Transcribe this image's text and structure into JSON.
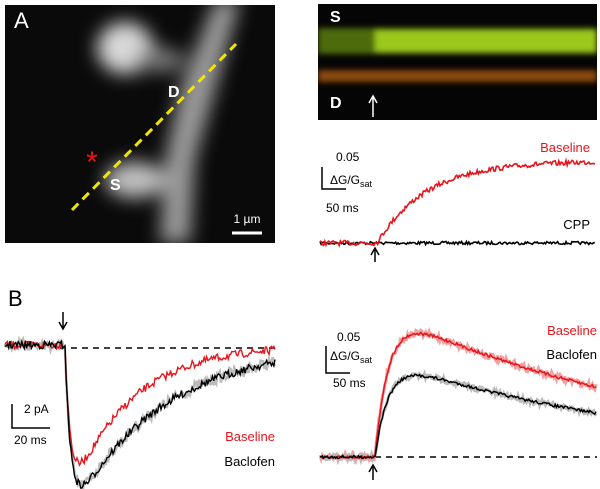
{
  "panel_a": {
    "label": "A",
    "asterisk": "*",
    "spine_label": "S",
    "dendrite_label": "D",
    "scale_bar": "1 µm"
  },
  "linescan": {
    "spine_label": "S",
    "dendrite_label": "D"
  },
  "trace_top": {
    "legend": [
      "Baseline",
      "CPP"
    ],
    "scale_y": "0.05",
    "scale_y_unit": {
      "main": "ΔG/G",
      "sub": "sat"
    },
    "scale_x": "50 ms"
  },
  "panel_b": {
    "label": "B",
    "current": {
      "scale_y": "2 pA",
      "scale_x": "20 ms",
      "legend": [
        "Baseline",
        "Baclofen"
      ]
    },
    "calcium": {
      "scale_y": "0.05",
      "scale_y_unit": {
        "main": "ΔG/G",
        "sub": "sat"
      },
      "scale_x": "50 ms",
      "legend": [
        "Baseline",
        "Baclofen"
      ]
    }
  }
}
